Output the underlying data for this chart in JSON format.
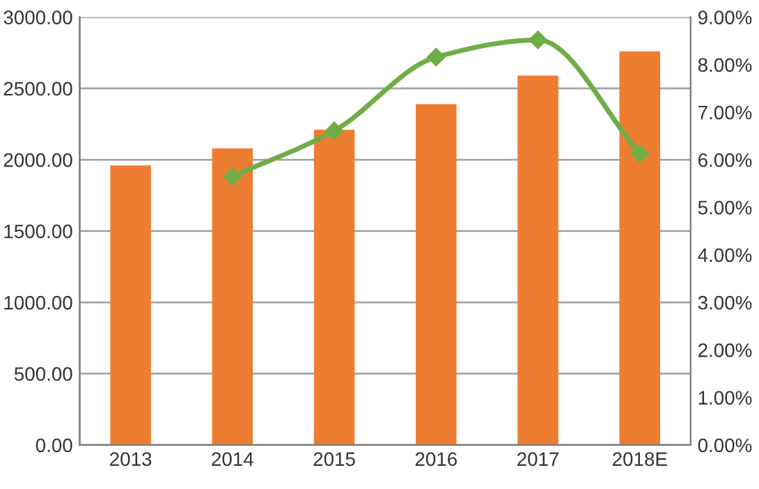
{
  "chart_data": {
    "type": "bar",
    "categories": [
      "2013",
      "2014",
      "2015",
      "2016",
      "2017",
      "2018E"
    ],
    "series": [
      {
        "color": "#ed7d31",
        "values": [
          1960,
          2080,
          2210,
          2390,
          2590,
          2760
        ]
      },
      {
        "type": "line",
        "axis": "y2",
        "color": "#70ad47",
        "marker": "diamond",
        "values": [
          null,
          5.65,
          6.61,
          8.16,
          8.52,
          6.13
        ]
      }
    ],
    "ylim": [
      0,
      3000
    ],
    "yticks": [
      {
        "value": 0,
        "label": "0.00"
      },
      {
        "value": 500,
        "label": "500.00"
      },
      {
        "value": 1000,
        "label": "1000.00"
      },
      {
        "value": 1500,
        "label": "1500.00"
      },
      {
        "value": 2000,
        "label": "2000.00"
      },
      {
        "value": 2500,
        "label": "2500.00"
      },
      {
        "value": 3000,
        "label": "3000.00"
      }
    ],
    "y2lim": [
      0,
      9
    ],
    "y2ticks": [
      {
        "value": 0,
        "label": "0.00%"
      },
      {
        "value": 1,
        "label": "1.00%"
      },
      {
        "value": 2,
        "label": "2.00%"
      },
      {
        "value": 3,
        "label": "3.00%"
      },
      {
        "value": 4,
        "label": "4.00%"
      },
      {
        "value": 5,
        "label": "5.00%"
      },
      {
        "value": 6,
        "label": "6.00%"
      },
      {
        "value": 7,
        "label": "7.00%"
      },
      {
        "value": 8,
        "label": "8.00%"
      },
      {
        "value": 9,
        "label": "9.00%"
      }
    ],
    "grid": "y"
  }
}
